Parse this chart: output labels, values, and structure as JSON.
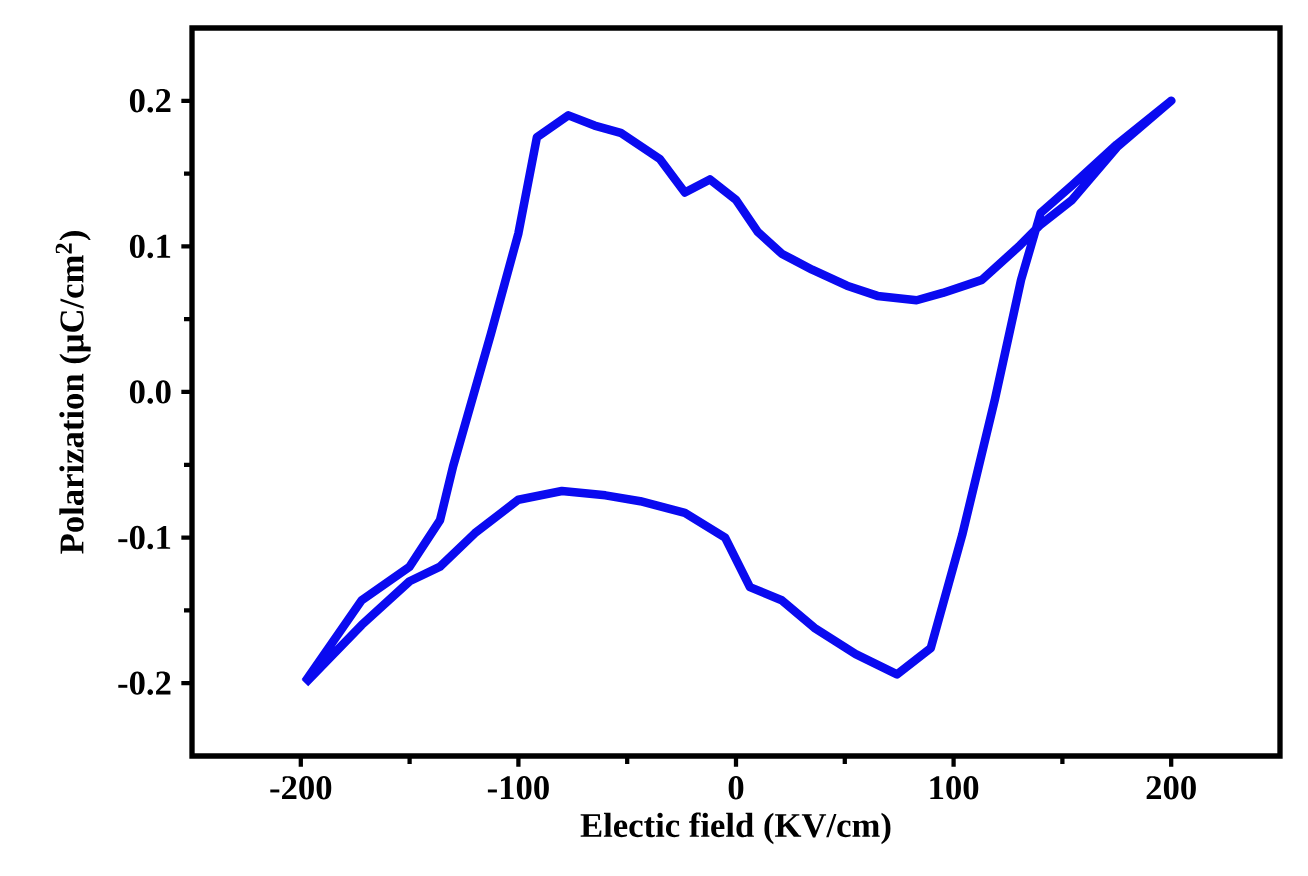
{
  "chart_data": {
    "type": "line",
    "xlabel": "Electic field (KV/cm)",
    "ylabel": "Polarization (μC/cm$^{2}$)",
    "xlim": [
      -250,
      250
    ],
    "ylim": [
      -0.25,
      0.25
    ],
    "xticks": [
      -200,
      -100,
      0,
      100,
      200
    ],
    "yticks": [
      -0.2,
      -0.1,
      {
        "value": 0,
        "label": "0.0"
      },
      0.1,
      0.2
    ],
    "color": "#0a0af0",
    "x": [
      -198,
      -172,
      -150,
      -136,
      -120,
      -100,
      -80,
      -60,
      -44,
      -23.5,
      -5,
      6.4,
      21,
      36,
      55,
      74,
      89.5,
      104,
      119,
      131,
      140,
      154.5,
      175,
      200,
      175,
      154.5,
      140,
      130,
      113,
      95,
      83,
      65,
      51,
      35,
      21,
      10,
      0,
      -12,
      -23.5,
      -35,
      -53,
      -65,
      -77,
      -91.5,
      -100,
      -112.6,
      -130,
      -136,
      -150,
      -172,
      -198
    ],
    "values": [
      -0.2,
      -0.16,
      -0.13,
      -0.12,
      -0.097,
      -0.074,
      -0.068,
      -0.071,
      -0.075,
      -0.083,
      -0.1,
      -0.134,
      -0.143,
      -0.162,
      -0.18,
      -0.194,
      -0.176,
      -0.098,
      -0.005,
      0.077,
      0.123,
      0.142,
      0.17,
      0.2,
      0.168,
      0.132,
      0.115,
      0.1,
      0.077,
      0.068,
      0.063,
      0.066,
      0.073,
      0.084,
      0.095,
      0.11,
      0.132,
      0.146,
      0.137,
      0.16,
      0.178,
      0.183,
      0.19,
      0.175,
      0.109,
      0.04,
      -0.051,
      -0.088,
      -0.12,
      -0.143,
      -0.199
    ]
  }
}
